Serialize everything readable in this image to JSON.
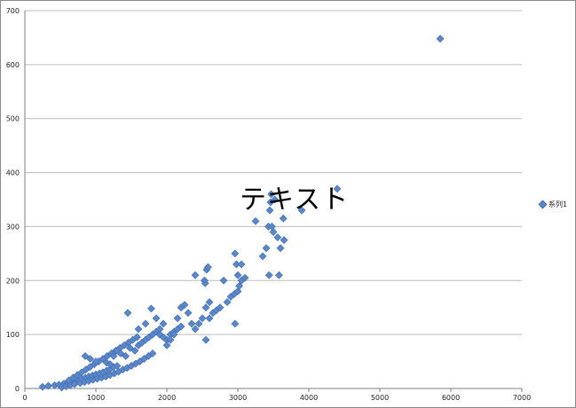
{
  "overlay_text": "テキスト",
  "colors": {
    "marker_fill": "#5b86c9",
    "marker_stroke": "#3f6fb5",
    "grid": "#bdbdbd",
    "axis": "#7f7f7f"
  },
  "chart_data": {
    "type": "scatter",
    "title": "",
    "xlabel": "",
    "ylabel": "",
    "xlim": [
      0,
      7000
    ],
    "ylim": [
      0,
      700
    ],
    "x_ticks": [
      0,
      1000,
      2000,
      3000,
      4000,
      5000,
      6000,
      7000
    ],
    "y_ticks": [
      0,
      100,
      200,
      300,
      400,
      500,
      600,
      700
    ],
    "grid": "horizontal",
    "legend": "right",
    "series": [
      {
        "name": "系列1",
        "marker": "diamond",
        "points": [
          [
            250,
            3
          ],
          [
            330,
            5
          ],
          [
            420,
            6
          ],
          [
            480,
            7
          ],
          [
            550,
            9
          ],
          [
            600,
            10
          ],
          [
            650,
            12
          ],
          [
            700,
            13
          ],
          [
            760,
            15
          ],
          [
            800,
            18
          ],
          [
            850,
            20
          ],
          [
            900,
            22
          ],
          [
            950,
            24
          ],
          [
            1000,
            26
          ],
          [
            1050,
            28
          ],
          [
            1100,
            30
          ],
          [
            1150,
            33
          ],
          [
            1200,
            36
          ],
          [
            1250,
            40
          ],
          [
            1300,
            42
          ],
          [
            520,
            2
          ],
          [
            580,
            4
          ],
          [
            640,
            6
          ],
          [
            700,
            8
          ],
          [
            780,
            10
          ],
          [
            840,
            12
          ],
          [
            900,
            14
          ],
          [
            960,
            16
          ],
          [
            1020,
            18
          ],
          [
            1080,
            20
          ],
          [
            1140,
            22
          ],
          [
            1200,
            25
          ],
          [
            1260,
            28
          ],
          [
            1320,
            31
          ],
          [
            1380,
            35
          ],
          [
            1440,
            38
          ],
          [
            1500,
            42
          ],
          [
            1560,
            46
          ],
          [
            1620,
            50
          ],
          [
            1680,
            55
          ],
          [
            1740,
            60
          ],
          [
            1800,
            65
          ],
          [
            620,
            15
          ],
          [
            680,
            20
          ],
          [
            740,
            25
          ],
          [
            800,
            30
          ],
          [
            860,
            35
          ],
          [
            920,
            40
          ],
          [
            980,
            45
          ],
          [
            1040,
            50
          ],
          [
            1100,
            55
          ],
          [
            1160,
            60
          ],
          [
            1220,
            65
          ],
          [
            1280,
            70
          ],
          [
            1340,
            75
          ],
          [
            1400,
            80
          ],
          [
            1460,
            85
          ],
          [
            1520,
            90
          ],
          [
            1580,
            95
          ],
          [
            850,
            60
          ],
          [
            920,
            55
          ],
          [
            1000,
            50
          ],
          [
            1150,
            48
          ],
          [
            1200,
            45
          ],
          [
            1250,
            60
          ],
          [
            1300,
            70
          ],
          [
            1350,
            65
          ],
          [
            1420,
            60
          ],
          [
            1480,
            75
          ],
          [
            1550,
            70
          ],
          [
            1600,
            80
          ],
          [
            1650,
            85
          ],
          [
            1700,
            90
          ],
          [
            1750,
            95
          ],
          [
            1800,
            100
          ],
          [
            1850,
            105
          ],
          [
            1900,
            100
          ],
          [
            1950,
            95
          ],
          [
            2000,
            90
          ],
          [
            2050,
            100
          ],
          [
            2100,
            105
          ],
          [
            2150,
            110
          ],
          [
            2200,
            115
          ],
          [
            1450,
            140
          ],
          [
            1600,
            110
          ],
          [
            1700,
            120
          ],
          [
            1780,
            148
          ],
          [
            1850,
            130
          ],
          [
            1900,
            110
          ],
          [
            1950,
            120
          ],
          [
            2000,
            80
          ],
          [
            2050,
            90
          ],
          [
            2100,
            100
          ],
          [
            2150,
            130
          ],
          [
            2200,
            150
          ],
          [
            2250,
            155
          ],
          [
            2300,
            140
          ],
          [
            2350,
            120
          ],
          [
            2400,
            110
          ],
          [
            2450,
            120
          ],
          [
            2500,
            130
          ],
          [
            2550,
            150
          ],
          [
            2600,
            160
          ],
          [
            2400,
            210
          ],
          [
            2530,
            200
          ],
          [
            2540,
            195
          ],
          [
            2560,
            220
          ],
          [
            2580,
            225
          ],
          [
            2600,
            130
          ],
          [
            2650,
            140
          ],
          [
            2700,
            145
          ],
          [
            2750,
            150
          ],
          [
            2800,
            200
          ],
          [
            2850,
            160
          ],
          [
            2900,
            170
          ],
          [
            2950,
            175
          ],
          [
            2550,
            90
          ],
          [
            2960,
            120
          ],
          [
            2960,
            250
          ],
          [
            2980,
            230
          ],
          [
            3000,
            210
          ],
          [
            3000,
            180
          ],
          [
            3020,
            190
          ],
          [
            3050,
            200
          ],
          [
            3050,
            230
          ],
          [
            3100,
            205
          ],
          [
            3250,
            310
          ],
          [
            3350,
            245
          ],
          [
            3400,
            260
          ],
          [
            3430,
            300
          ],
          [
            3440,
            210
          ],
          [
            3450,
            330
          ],
          [
            3460,
            345
          ],
          [
            3470,
            360
          ],
          [
            3480,
            300
          ],
          [
            3500,
            290
          ],
          [
            3520,
            350
          ],
          [
            3560,
            280
          ],
          [
            3580,
            210
          ],
          [
            3600,
            260
          ],
          [
            3640,
            315
          ],
          [
            3650,
            275
          ],
          [
            3900,
            330
          ],
          [
            4400,
            370
          ],
          [
            5850,
            648
          ]
        ]
      }
    ]
  }
}
